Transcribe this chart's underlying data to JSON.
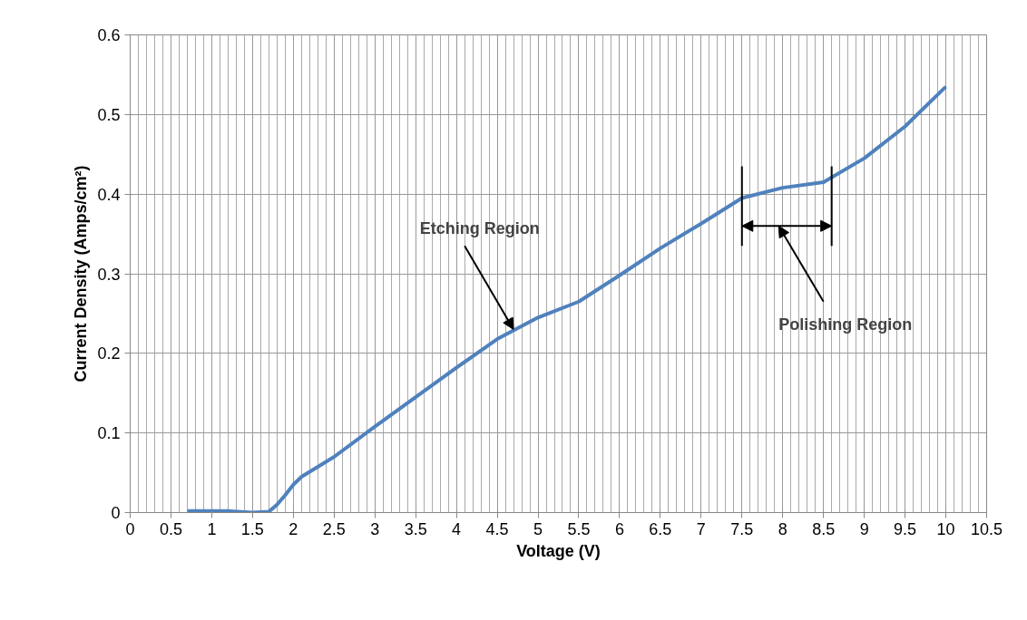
{
  "chart_data": {
    "type": "line",
    "xlabel": "Voltage (V)",
    "ylabel": "Current Density (Amps/cm²)",
    "x": [
      0.7,
      1.0,
      1.2,
      1.5,
      1.7,
      1.8,
      1.9,
      2.0,
      2.1,
      2.5,
      3.0,
      3.5,
      4.0,
      4.5,
      5.0,
      5.5,
      6.0,
      6.5,
      7.0,
      7.5,
      8.0,
      8.5,
      9.0,
      9.5,
      10.0
    ],
    "series": [
      {
        "color": "#4f81bd",
        "values": [
          0.002,
          0.002,
          0.002,
          0.0,
          0.001,
          0.01,
          0.022,
          0.035,
          0.045,
          0.07,
          0.108,
          0.145,
          0.182,
          0.218,
          0.245,
          0.265,
          0.298,
          0.332,
          0.363,
          0.395,
          0.408,
          0.415,
          0.445,
          0.485,
          0.535
        ]
      }
    ],
    "xlim": [
      0,
      10.5
    ],
    "ylim": [
      0,
      0.6
    ],
    "xticks": [
      0,
      0.5,
      1,
      1.5,
      2,
      2.5,
      3,
      3.5,
      4,
      4.5,
      5,
      5.5,
      6,
      6.5,
      7,
      7.5,
      8,
      8.5,
      9,
      9.5,
      10,
      10.5
    ],
    "yticks": [
      0,
      0.1,
      0.2,
      0.3,
      0.4,
      0.5,
      0.6
    ],
    "grid": true,
    "marker": "none",
    "line_style": "solid",
    "annotations": [
      {
        "text": "Etching Region",
        "x": 4.7,
        "y": 0.23
      },
      "Polishing Region"
    ],
    "ref_lines": [
      {
        "axis": "x",
        "value": 7.5,
        "color": "#000000"
      },
      {
        "axis": "x",
        "value": 8.6,
        "color": "#000000"
      }
    ]
  }
}
